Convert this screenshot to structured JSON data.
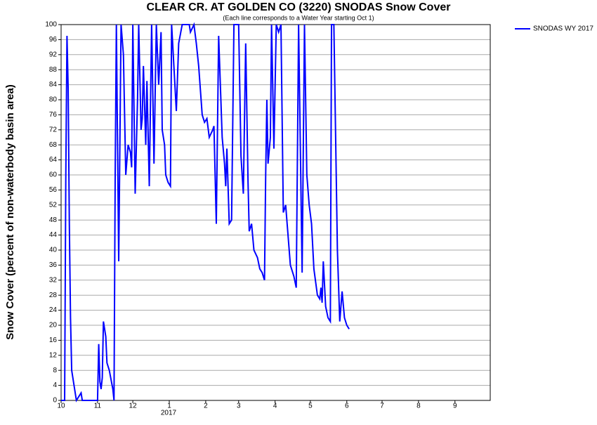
{
  "chart_data": {
    "type": "line",
    "title": "CLEAR CR. AT GOLDEN CO (3220) SNODAS Snow Cover",
    "subtitle": "(Each line corresponds to a Water Year starting Oct 1)",
    "y_label": "Snow Cover (percent of non-waterbody basin area)",
    "x_sublabel": "2017",
    "x": [
      0,
      3,
      4,
      5,
      6,
      7,
      8,
      9,
      11,
      13,
      17,
      18,
      31,
      32,
      33,
      34,
      35,
      36,
      38,
      39,
      41,
      44,
      45,
      46,
      47,
      49,
      51,
      53,
      55,
      57,
      59,
      60,
      61,
      63,
      65,
      66,
      68,
      69,
      70,
      72,
      73,
      75,
      77,
      79,
      81,
      83,
      85,
      86,
      88,
      89,
      91,
      93,
      94,
      98,
      100,
      103,
      109,
      110,
      113,
      115,
      117,
      120,
      122,
      124,
      126,
      129,
      130,
      132,
      134,
      137,
      139,
      140,
      141,
      143,
      145,
      147,
      151,
      153,
      155,
      157,
      159,
      160,
      162,
      164,
      167,
      169,
      171,
      173,
      174,
      175,
      176,
      178,
      179,
      181,
      183,
      185,
      187,
      189,
      191,
      193,
      195,
      198,
      200,
      202,
      205,
      207,
      209,
      211,
      213,
      215,
      218,
      220,
      221,
      222,
      223,
      225,
      227,
      229,
      230,
      232,
      234,
      235,
      237,
      239,
      241,
      243,
      245
    ],
    "series": [
      {
        "name": "SNODAS WY 2017",
        "color": "#0000ff",
        "values": [
          0,
          0,
          60,
          97,
          83,
          47,
          22,
          8,
          4,
          0,
          2,
          0,
          0,
          15,
          5,
          3,
          6,
          21,
          17,
          10,
          8,
          3,
          0,
          60,
          100,
          37,
          100,
          92,
          60,
          68,
          66,
          62,
          100,
          55,
          80,
          100,
          72,
          75,
          89,
          68,
          85,
          57,
          100,
          63,
          100,
          84,
          98,
          72,
          68,
          60,
          58,
          57,
          100,
          77,
          95,
          100,
          100,
          98,
          100,
          95,
          89,
          76,
          74,
          75,
          70,
          72,
          73,
          47,
          97,
          70,
          63,
          57,
          67,
          47,
          48,
          100,
          100,
          65,
          55,
          95,
          58,
          45,
          47,
          40,
          38,
          35,
          34,
          32,
          60,
          80,
          63,
          70,
          100,
          67,
          100,
          98,
          100,
          50,
          52,
          44,
          36,
          33,
          30,
          100,
          34,
          100,
          60,
          52,
          47,
          35,
          28,
          27,
          30,
          26,
          37,
          25,
          22,
          21,
          100,
          100,
          60,
          40,
          21,
          29,
          22,
          20,
          19
        ]
      }
    ],
    "xlim": [
      0,
      365
    ],
    "xticks": [
      {
        "value": 0,
        "label": "10"
      },
      {
        "value": 31,
        "label": "11"
      },
      {
        "value": 61,
        "label": "12"
      },
      {
        "value": 92,
        "label": "1"
      },
      {
        "value": 123,
        "label": "2"
      },
      {
        "value": 151,
        "label": "3"
      },
      {
        "value": 182,
        "label": "4"
      },
      {
        "value": 212,
        "label": "5"
      },
      {
        "value": 243,
        "label": "6"
      },
      {
        "value": 273,
        "label": "7"
      },
      {
        "value": 304,
        "label": "8"
      },
      {
        "value": 335,
        "label": "9"
      }
    ],
    "ylim": [
      0,
      100
    ],
    "yticks": [
      0,
      4,
      8,
      12,
      16,
      20,
      24,
      28,
      32,
      36,
      40,
      44,
      48,
      52,
      56,
      60,
      64,
      68,
      72,
      76,
      80,
      84,
      88,
      92,
      96,
      100
    ],
    "grid": true,
    "legend": "top-right"
  }
}
